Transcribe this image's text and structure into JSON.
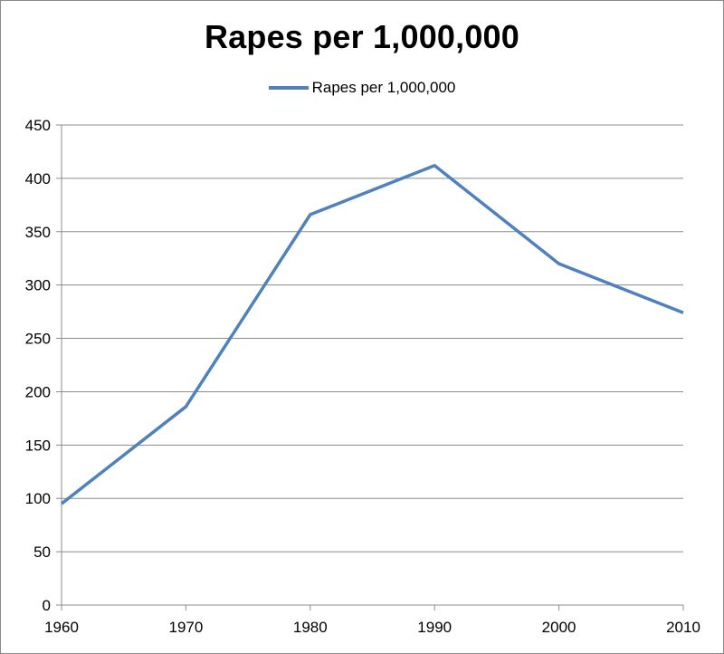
{
  "chart_data": {
    "type": "line",
    "title": "Rapes per 1,000,000",
    "xlabel": "",
    "ylabel": "",
    "categories": [
      "1960",
      "1970",
      "1980",
      "1990",
      "2000",
      "2010"
    ],
    "series": [
      {
        "name": "Rapes per 1,000,000",
        "values": [
          95,
          186,
          366,
          412,
          320,
          274
        ],
        "color": "#4f81bd"
      }
    ],
    "ylim": [
      0,
      450
    ],
    "yticks": [
      "0",
      "50",
      "100",
      "150",
      "200",
      "250",
      "300",
      "350",
      "400",
      "450"
    ],
    "grid": true,
    "legend_position": "top-center"
  },
  "colors": {
    "grid": "#8c8c8c",
    "axis": "#8c8c8c",
    "series": "#4f81bd"
  }
}
